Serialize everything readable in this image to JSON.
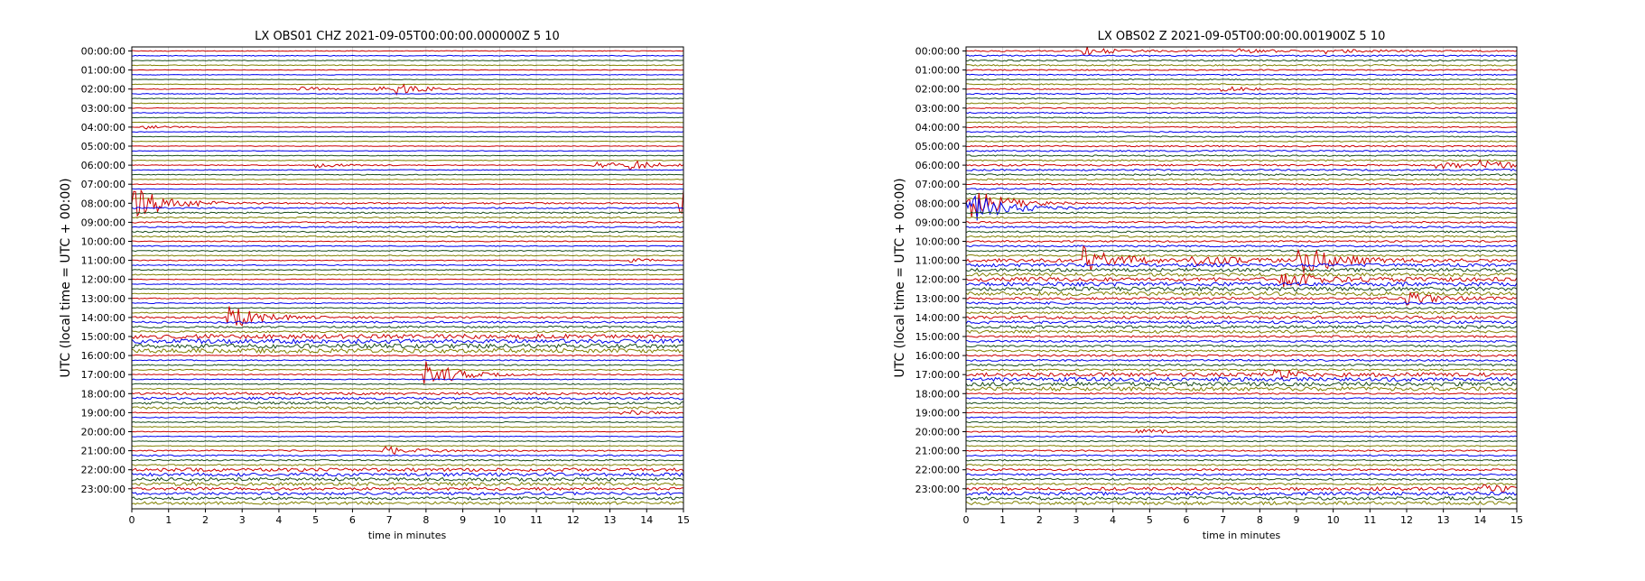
{
  "chart_data": [
    {
      "type": "line",
      "subtype": "dayplot",
      "title": "LX OBS01 CHZ 2021-09-05T00:00:00.000000Z 5 10",
      "xlabel": "time in minutes",
      "ylabel": "UTC (local time = UTC + 00:00)",
      "xlim": [
        0,
        15
      ],
      "x_ticks": [
        "0",
        "1",
        "2",
        "3",
        "4",
        "5",
        "6",
        "7",
        "8",
        "9",
        "10",
        "11",
        "12",
        "13",
        "14",
        "15"
      ],
      "y_ticks": [
        "00:00:00",
        "01:00:00",
        "02:00:00",
        "03:00:00",
        "04:00:00",
        "05:00:00",
        "06:00:00",
        "07:00:00",
        "08:00:00",
        "09:00:00",
        "10:00:00",
        "11:00:00",
        "12:00:00",
        "13:00:00",
        "14:00:00",
        "15:00:00",
        "16:00:00",
        "17:00:00",
        "18:00:00",
        "19:00:00",
        "20:00:00",
        "21:00:00",
        "22:00:00",
        "23:00:00"
      ],
      "rows_per_hour": 4,
      "grid": true,
      "trace_colors": [
        "#cc0000",
        "#0000ee",
        "#1a4d1a",
        "#808000"
      ],
      "noise_level": [
        0.08,
        0.06,
        0.08,
        0.07,
        0.06,
        0.07,
        0.08,
        0.06,
        0.15,
        0.15,
        0.1,
        0.1,
        0.08,
        0.1,
        0.2,
        0.45,
        0.12,
        0.1,
        0.25,
        0.1,
        0.08,
        0.15,
        0.35,
        0.3
      ],
      "events": [
        {
          "hour": 2,
          "minute": 4.5,
          "amplitude": 0.5
        },
        {
          "hour": 2,
          "minute": 6.5,
          "amplitude": 0.6
        },
        {
          "hour": 2,
          "minute": 7.2,
          "amplitude": 0.8
        },
        {
          "hour": 4,
          "minute": 0.3,
          "amplitude": 0.4
        },
        {
          "hour": 6,
          "minute": 5.0,
          "amplitude": 0.5
        },
        {
          "hour": 6,
          "minute": 12.5,
          "amplitude": 0.8
        },
        {
          "hour": 6,
          "minute": 13.6,
          "amplitude": 0.8
        },
        {
          "hour": 8,
          "minute": 0.1,
          "amplitude": 3.5
        },
        {
          "hour": 8,
          "minute": 14.9,
          "amplitude": 3.0
        },
        {
          "hour": 11,
          "minute": 13.5,
          "amplitude": 0.4
        },
        {
          "hour": 14,
          "minute": 2.6,
          "amplitude": 2.5
        },
        {
          "hour": 17,
          "minute": 8.0,
          "amplitude": 3.0
        },
        {
          "hour": 19,
          "minute": 13.3,
          "amplitude": 0.6
        },
        {
          "hour": 21,
          "minute": 6.8,
          "amplitude": 1.0
        }
      ]
    },
    {
      "type": "line",
      "subtype": "dayplot",
      "title": "LX OBS02 Z 2021-09-05T00:00:00.001900Z 5 10",
      "xlabel": "time in minutes",
      "ylabel": "UTC (local time = UTC + 00:00)",
      "xlim": [
        0,
        15
      ],
      "x_ticks": [
        "0",
        "1",
        "2",
        "3",
        "4",
        "5",
        "6",
        "7",
        "8",
        "9",
        "10",
        "11",
        "12",
        "13",
        "14",
        "15"
      ],
      "y_ticks": [
        "00:00:00",
        "01:00:00",
        "02:00:00",
        "03:00:00",
        "04:00:00",
        "05:00:00",
        "06:00:00",
        "07:00:00",
        "08:00:00",
        "09:00:00",
        "10:00:00",
        "11:00:00",
        "12:00:00",
        "13:00:00",
        "14:00:00",
        "15:00:00",
        "16:00:00",
        "17:00:00",
        "18:00:00",
        "19:00:00",
        "20:00:00",
        "21:00:00",
        "22:00:00",
        "23:00:00"
      ],
      "rows_per_hour": 4,
      "grid": true,
      "trace_colors": [
        "#cc0000",
        "#0000ee",
        "#1a4d1a",
        "#808000"
      ],
      "noise_level": [
        0.15,
        0.12,
        0.12,
        0.12,
        0.12,
        0.15,
        0.18,
        0.15,
        0.15,
        0.18,
        0.18,
        0.35,
        0.4,
        0.25,
        0.3,
        0.2,
        0.2,
        0.4,
        0.15,
        0.12,
        0.12,
        0.15,
        0.2,
        0.35
      ],
      "events": [
        {
          "hour": 0,
          "minute": 3.2,
          "amplitude": 0.8
        },
        {
          "hour": 0,
          "minute": 7.4,
          "amplitude": 0.5
        },
        {
          "hour": 0,
          "minute": 9.8,
          "amplitude": 0.5
        },
        {
          "hour": 2,
          "minute": 7.0,
          "amplitude": 0.5
        },
        {
          "hour": 6,
          "minute": 12.8,
          "amplitude": 0.8
        },
        {
          "hour": 6,
          "minute": 14.0,
          "amplitude": 0.8
        },
        {
          "hour": 8,
          "minute": 0.1,
          "amplitude": 3.5
        },
        {
          "hour": 8,
          "minute": 15.0,
          "amplitude": 4.0
        },
        {
          "hour": 11,
          "minute": 3.2,
          "amplitude": 3.0
        },
        {
          "hour": 11,
          "minute": 6.2,
          "amplitude": 1.0
        },
        {
          "hour": 11,
          "minute": 9.1,
          "amplitude": 3.5
        },
        {
          "hour": 12,
          "minute": 8.6,
          "amplitude": 1.5
        },
        {
          "hour": 13,
          "minute": 12.0,
          "amplitude": 1.2
        },
        {
          "hour": 17,
          "minute": 8.4,
          "amplitude": 0.8
        },
        {
          "hour": 20,
          "minute": 4.7,
          "amplitude": 0.5
        },
        {
          "hour": 23,
          "minute": 14.0,
          "amplitude": 0.8
        }
      ]
    }
  ]
}
